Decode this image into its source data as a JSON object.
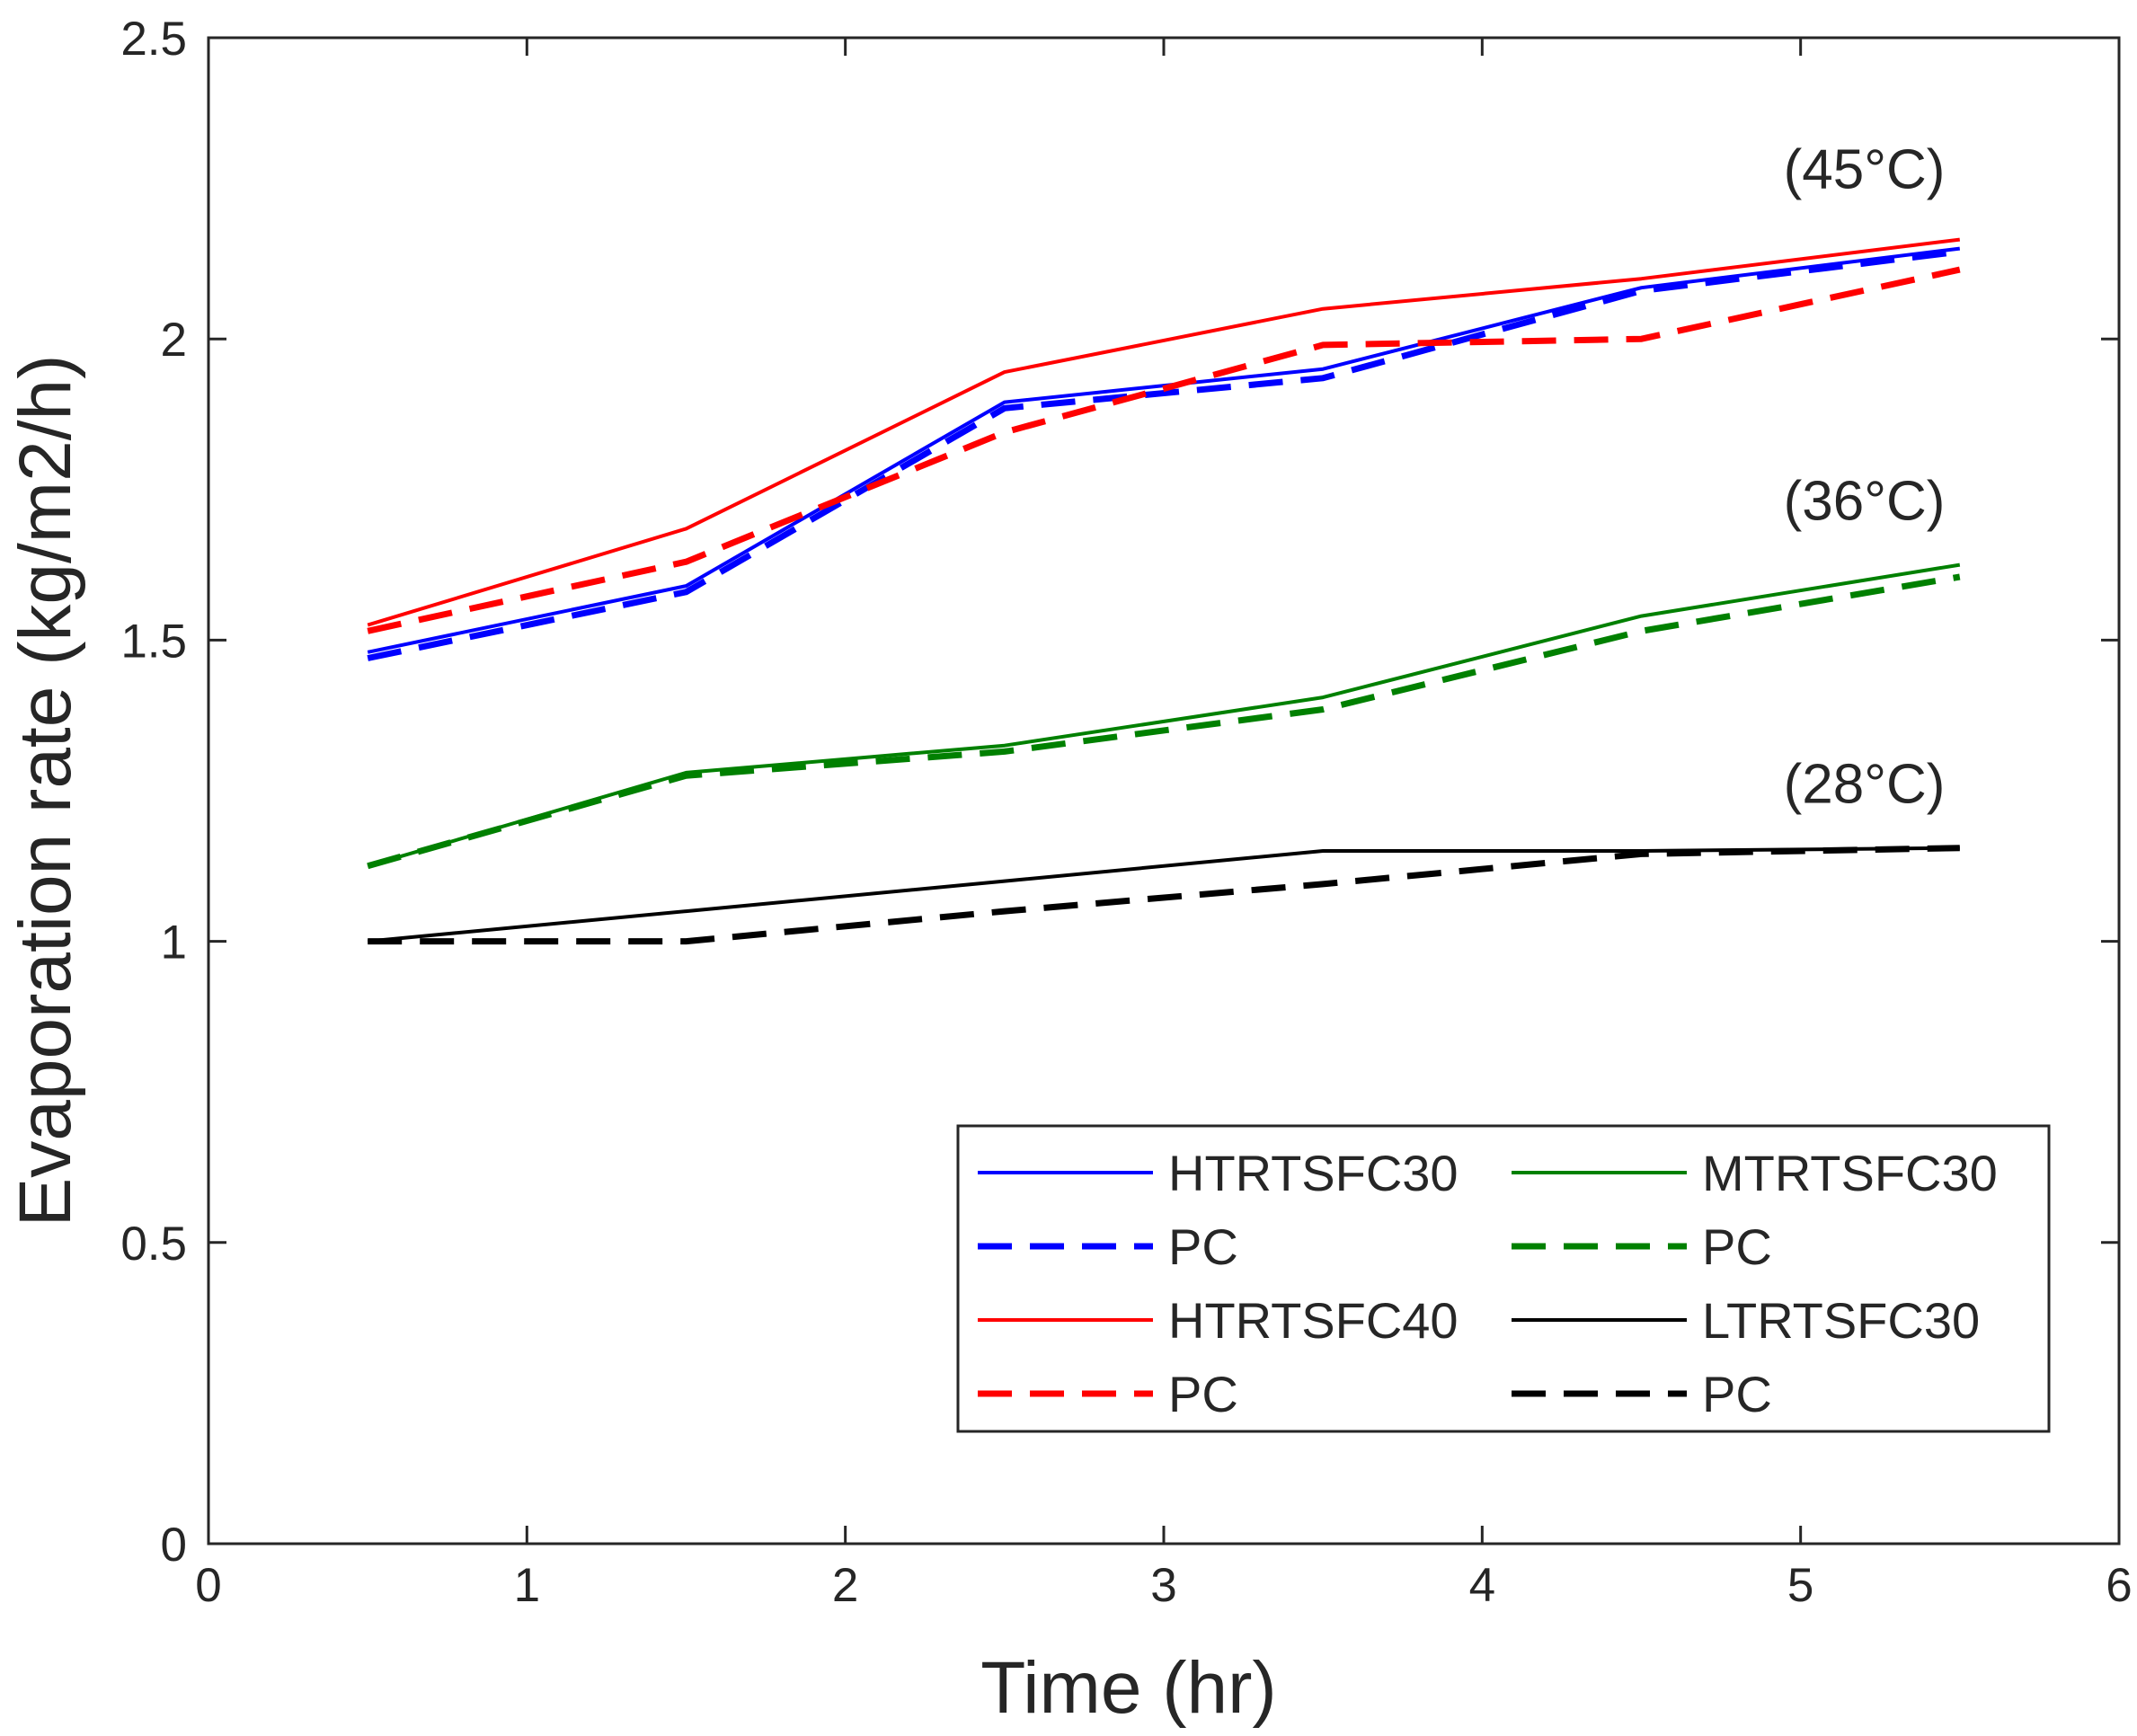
{
  "chart_data": {
    "type": "line",
    "title": "",
    "xlabel": "Time (hr)",
    "ylabel": "Evaporation rate (kg/m2/h)",
    "xlim": [
      0,
      6
    ],
    "ylim": [
      0,
      2.5
    ],
    "xticks": [
      0,
      1,
      2,
      3,
      4,
      5,
      6
    ],
    "xtick_labels": [
      "0",
      "1",
      "2",
      "3",
      "4",
      "5",
      "6"
    ],
    "yticks": [
      0,
      0.5,
      1,
      1.5,
      2,
      2.5
    ],
    "ytick_labels": [
      "0",
      "0.5",
      "1",
      "1.5",
      "2",
      "2.5"
    ],
    "grid": false,
    "legend_position": "bottom-right",
    "x": [
      0.5,
      1.5,
      2.5,
      3.5,
      4.5,
      5.5
    ],
    "series": [
      {
        "name": "HTRTSFC30",
        "color": "#0000ff",
        "dash": "solid",
        "values": [
          1.48,
          1.59,
          1.895,
          1.95,
          2.085,
          2.15
        ]
      },
      {
        "name": "PC",
        "color": "#0000ff",
        "dash": "dashed",
        "values": [
          1.47,
          1.58,
          1.885,
          1.935,
          2.08,
          2.145
        ]
      },
      {
        "name": "HTRTSFC40",
        "color": "#ff0000",
        "dash": "solid",
        "values": [
          1.525,
          1.685,
          1.945,
          2.05,
          2.1,
          2.165
        ]
      },
      {
        "name": "PC",
        "color": "#ff0000",
        "dash": "dashed",
        "values": [
          1.515,
          1.63,
          1.845,
          1.99,
          2.0,
          2.115
        ]
      },
      {
        "name": "MTRTSFC30",
        "color": "#008000",
        "dash": "solid",
        "values": [
          1.125,
          1.28,
          1.325,
          1.405,
          1.54,
          1.625
        ]
      },
      {
        "name": "PC",
        "color": "#008000",
        "dash": "dashed",
        "values": [
          1.125,
          1.275,
          1.315,
          1.385,
          1.515,
          1.605
        ]
      },
      {
        "name": "LTRTSFC30",
        "color": "#000000",
        "dash": "solid",
        "values": [
          1.0,
          1.05,
          1.1,
          1.15,
          1.15,
          1.155
        ]
      },
      {
        "name": "PC",
        "color": "#000000",
        "dash": "dashed",
        "values": [
          1.0,
          1.0,
          1.05,
          1.095,
          1.145,
          1.155
        ]
      }
    ],
    "annotations": [
      {
        "text": "(45°C)",
        "x": 5.2,
        "y": 2.25
      },
      {
        "text": "(36°C)",
        "x": 5.2,
        "y": 1.7
      },
      {
        "text": "(28°C)",
        "x": 5.2,
        "y": 1.23
      }
    ],
    "legend": [
      {
        "label": "HTRTSFC30",
        "color": "#0000ff",
        "dash": "solid"
      },
      {
        "label": "PC",
        "color": "#0000ff",
        "dash": "dashed"
      },
      {
        "label": "HTRTSFC40",
        "color": "#ff0000",
        "dash": "solid"
      },
      {
        "label": "PC",
        "color": "#ff0000",
        "dash": "dashed"
      },
      {
        "label": "MTRTSFC30",
        "color": "#008000",
        "dash": "solid"
      },
      {
        "label": "PC",
        "color": "#008000",
        "dash": "dashed"
      },
      {
        "label": "LTRTSFC30",
        "color": "#000000",
        "dash": "solid"
      },
      {
        "label": "PC",
        "color": "#000000",
        "dash": "dashed"
      }
    ]
  }
}
